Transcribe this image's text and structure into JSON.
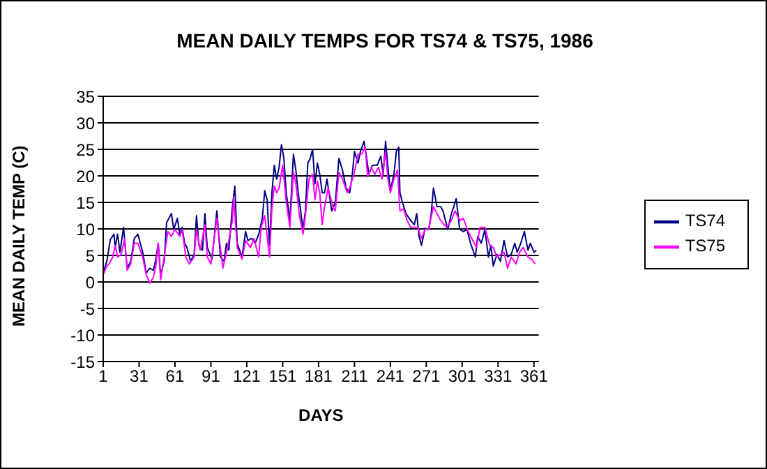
{
  "chart_data": {
    "type": "line",
    "title": "MEAN DAILY TEMPS FOR TS74 & TS75, 1986",
    "xlabel": "DAYS",
    "ylabel": "MEAN DAILY TEMP (C)",
    "xlim": [
      1,
      365
    ],
    "xticks": [
      1,
      31,
      61,
      91,
      121,
      151,
      181,
      211,
      241,
      271,
      301,
      331,
      361
    ],
    "ylim": [
      -15,
      35
    ],
    "yticks": [
      -15,
      -10,
      -5,
      0,
      5,
      10,
      15,
      20,
      25,
      30,
      35
    ],
    "grid": "y",
    "legend": "right",
    "marker": "none",
    "line_style": "solid",
    "series": [
      {
        "name": "TS74",
        "color": "#000080",
        "x": [
          1,
          4,
          7,
          10,
          11,
          13,
          15,
          18,
          21,
          24,
          27,
          30,
          34,
          37,
          40,
          43,
          45,
          47,
          49,
          52,
          54,
          58,
          60,
          63,
          65,
          67,
          69,
          71,
          74,
          77,
          79,
          81,
          84,
          86,
          88,
          92,
          96,
          99,
          102,
          104,
          106,
          109,
          111,
          113,
          117,
          120,
          122,
          125,
          128,
          131,
          134,
          136,
          138,
          140,
          142,
          144,
          146,
          148,
          150,
          152,
          154,
          156,
          157,
          160,
          162,
          164,
          166,
          168,
          170,
          172,
          174,
          176,
          178,
          180,
          182,
          184,
          186,
          188,
          192,
          195,
          198,
          201,
          204,
          207,
          209,
          211,
          214,
          216,
          219,
          221,
          223,
          226,
          230,
          233,
          235,
          237,
          239,
          241,
          244,
          246,
          248,
          249,
          251,
          254,
          258,
          261,
          263,
          265,
          267,
          270,
          273,
          275,
          277,
          280,
          283,
          285,
          289,
          292,
          294,
          296,
          299,
          302,
          305,
          308,
          312,
          314,
          317,
          320,
          323,
          325,
          327,
          330,
          333,
          336,
          339,
          342,
          345,
          347,
          350,
          353,
          356,
          358,
          361,
          363
        ],
        "values": [
          1.7,
          3.9,
          8,
          9,
          6.5,
          9,
          5.6,
          10.3,
          2.6,
          3.9,
          8.2,
          9,
          5.6,
          1.7,
          2.6,
          2.2,
          4.3,
          7.3,
          1.3,
          3.9,
          11.2,
          12.9,
          9.9,
          12,
          9,
          10.3,
          7.3,
          6.5,
          3.9,
          5.2,
          12.5,
          6.9,
          6,
          12.9,
          6.5,
          4.3,
          13.4,
          4.7,
          3.9,
          7.3,
          6,
          14.2,
          18.1,
          7.3,
          4.7,
          9.5,
          7.8,
          8.2,
          7.3,
          9,
          12,
          17.2,
          15.5,
          6.9,
          16.8,
          22,
          19.4,
          21.6,
          25.9,
          23.3,
          16.8,
          13.4,
          11.2,
          24.1,
          21.1,
          16.8,
          13.4,
          9.9,
          13.4,
          22.4,
          23.3,
          25,
          18.5,
          22.4,
          20.3,
          16.8,
          16.8,
          19.4,
          13.4,
          15,
          23.3,
          21.1,
          17.7,
          16.8,
          19.8,
          24.6,
          22.4,
          24.6,
          26.5,
          23.7,
          20.3,
          22,
          22,
          23.7,
          20.3,
          26.5,
          21.6,
          17.2,
          20.3,
          24.6,
          25.4,
          16.8,
          15.1,
          12.9,
          11.6,
          10.8,
          12.9,
          8.6,
          6.9,
          10.1,
          9.9,
          12.5,
          17.7,
          14.2,
          14.2,
          13.4,
          9.9,
          12.9,
          14.2,
          15.7,
          9.9,
          9.5,
          9.9,
          7.3,
          4.7,
          8.6,
          7.3,
          9.9,
          4.7,
          6.9,
          3,
          5.2,
          3.9,
          7.8,
          4.7,
          5.2,
          7.3,
          5.6,
          7.3,
          9.5,
          6,
          7.3,
          5.6,
          6
        ]
      },
      {
        "name": "TS75",
        "color": "#ff00ff",
        "x": [
          1,
          4,
          6,
          9,
          11,
          13,
          16,
          19,
          21,
          24,
          27,
          30,
          34,
          37,
          40,
          43,
          45,
          47,
          49,
          52,
          55,
          58,
          61,
          65,
          67,
          70,
          73,
          77,
          79,
          82,
          86,
          88,
          91,
          96,
          101,
          105,
          109,
          110,
          113,
          117,
          120,
          124,
          127,
          131,
          133,
          136,
          140,
          142,
          144,
          146,
          148,
          151,
          154,
          157,
          160,
          162,
          165,
          168,
          170,
          173,
          176,
          178,
          180,
          182,
          184,
          186,
          189,
          193,
          195,
          198,
          201,
          205,
          207,
          211,
          214,
          217,
          220,
          222,
          225,
          228,
          231,
          234,
          237,
          239,
          241,
          244,
          247,
          249,
          252,
          255,
          258,
          261,
          264,
          267,
          270,
          273,
          277,
          280,
          283,
          288,
          292,
          295,
          299,
          302,
          306,
          309,
          313,
          316,
          320,
          324,
          327,
          330,
          333,
          336,
          339,
          342,
          346,
          349,
          352,
          356,
          359,
          362
        ],
        "values": [
          1.3,
          3,
          3.4,
          4.7,
          6.9,
          4.7,
          5.2,
          8.2,
          2.2,
          3.4,
          7.3,
          7.3,
          4.7,
          1.3,
          -0.2,
          0.9,
          3,
          7.3,
          0.4,
          4.7,
          9.5,
          8.6,
          9.9,
          8.6,
          9.9,
          4.7,
          3.4,
          4.7,
          9.9,
          6,
          10.8,
          4.7,
          3.4,
          12,
          2.6,
          6.5,
          11.6,
          16,
          6.5,
          4.3,
          7.8,
          6.5,
          8.2,
          4.7,
          10.3,
          12.5,
          4.7,
          13.8,
          18.1,
          16.8,
          17.7,
          22,
          15.1,
          10.3,
          20.7,
          18.5,
          12.5,
          9,
          12.5,
          19.4,
          20.3,
          15.5,
          19,
          16.8,
          10.8,
          14.2,
          17.7,
          14.2,
          13.4,
          20.7,
          19.4,
          16.8,
          17.7,
          20.7,
          24.1,
          24.1,
          25.4,
          19.8,
          21.6,
          20.3,
          21.6,
          19.4,
          24.6,
          19.4,
          16.8,
          19.4,
          21.1,
          13.4,
          13.8,
          11.6,
          10.3,
          10.3,
          10.3,
          8.2,
          9.9,
          9.9,
          14.2,
          12.9,
          11.6,
          10.3,
          11.6,
          13.4,
          11.6,
          12,
          9.5,
          8.2,
          6.5,
          10.3,
          10.3,
          6.9,
          6.5,
          4.7,
          5.2,
          5.6,
          2.6,
          4.7,
          3.4,
          5.6,
          6.5,
          4.7,
          4.3,
          3.4
        ]
      }
    ]
  }
}
